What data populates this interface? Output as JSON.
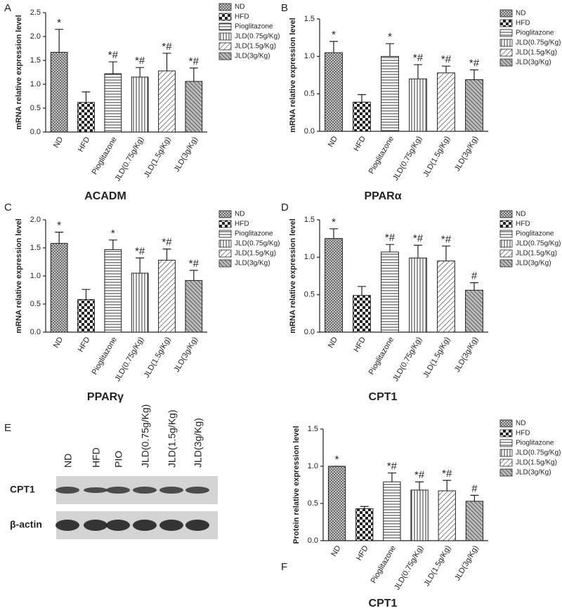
{
  "chart_data": [
    {
      "type": "bar",
      "panel_label": "A",
      "title": "ACADM",
      "ylabel": "mRNA relative expression level",
      "categories": [
        "ND",
        "HFD",
        "Pioglitazone",
        "JLD(0.75g/Kg)",
        "JLD(1.5g/Kg)",
        "JLD(3g/Kg)"
      ],
      "values": [
        1.67,
        0.62,
        1.22,
        1.15,
        1.28,
        1.06
      ],
      "errors": [
        0.48,
        0.22,
        0.25,
        0.2,
        0.37,
        0.28
      ],
      "annotations": [
        "*",
        null,
        "*#",
        "*#",
        "*#",
        "*#"
      ],
      "ylim": [
        0,
        2.5
      ],
      "yticks": [
        {
          "value": 0,
          "label": "0.0"
        },
        {
          "value": 0.5,
          "label": "0.5"
        },
        {
          "value": 1,
          "label": "1.0"
        },
        {
          "value": 1.5,
          "label": "1.5"
        },
        {
          "value": 2,
          "label": "2.0"
        },
        {
          "value": 2.5,
          "label": "2.5"
        }
      ]
    },
    {
      "type": "bar",
      "panel_label": "B",
      "title": "PPARα",
      "ylabel": "mRNA relative expression level",
      "categories": [
        "ND",
        "HFD",
        "Pioglitazone",
        "JLD(0.75g/Kg)",
        "JLD(1.5g/Kg)",
        "JLD(3g/Kg)"
      ],
      "values": [
        1.05,
        0.39,
        1.0,
        0.7,
        0.78,
        0.69
      ],
      "errors": [
        0.15,
        0.1,
        0.17,
        0.19,
        0.09,
        0.13
      ],
      "annotations": [
        "*",
        null,
        "*",
        "*#",
        "*#",
        "*#"
      ],
      "ylim": [
        0,
        1.5
      ],
      "yticks": [
        {
          "value": 0,
          "label": "0.0"
        },
        {
          "value": 0.5,
          "label": "0.5"
        },
        {
          "value": 1,
          "label": "1.0"
        },
        {
          "value": 1.5,
          "label": "1.5"
        }
      ]
    },
    {
      "type": "bar",
      "panel_label": "C",
      "title": "PPARγ",
      "ylabel": "mRNA relative expression level",
      "categories": [
        "ND",
        "HFD",
        "Pioglitazone",
        "JLD(0.75g/Kg)",
        "JLD(1.5g/Kg)",
        "JLD(3g/Kg)"
      ],
      "values": [
        1.58,
        0.58,
        1.47,
        1.05,
        1.28,
        0.92
      ],
      "errors": [
        0.2,
        0.18,
        0.17,
        0.27,
        0.2,
        0.18
      ],
      "annotations": [
        "*",
        null,
        "*",
        "*#",
        "*#",
        "*#"
      ],
      "ylim": [
        0,
        2
      ],
      "yticks": [
        {
          "value": 0,
          "label": "0.0"
        },
        {
          "value": 0.5,
          "label": "0.5"
        },
        {
          "value": 1,
          "label": "1.0"
        },
        {
          "value": 1.5,
          "label": "1.5"
        },
        {
          "value": 2,
          "label": "2.0"
        }
      ]
    },
    {
      "type": "bar",
      "panel_label": "D",
      "title": "CPT1",
      "ylabel": "mRNA relative expression level",
      "categories": [
        "ND",
        "HFD",
        "Pioglitazone",
        "JLD(0.75g/Kg)",
        "JLD(1.5g/Kg)",
        "JLD(3g/Kg)"
      ],
      "values": [
        1.25,
        0.49,
        1.07,
        0.99,
        0.95,
        0.56
      ],
      "errors": [
        0.13,
        0.12,
        0.1,
        0.17,
        0.2,
        0.1
      ],
      "annotations": [
        "*",
        null,
        "*#",
        "*#",
        "*#",
        "#"
      ],
      "ylim": [
        0,
        1.5
      ],
      "yticks": [
        {
          "value": 0,
          "label": "0.0"
        },
        {
          "value": 0.5,
          "label": "0.5"
        },
        {
          "value": 1,
          "label": "1.0"
        },
        {
          "value": 1.5,
          "label": "1.5"
        }
      ]
    },
    {
      "type": "bar",
      "panel_label": "F",
      "title": "CPT1",
      "ylabel": "Protein relative expression level",
      "categories": [
        "ND",
        "HFD",
        "Pioglitazone",
        "JLD(0.75g/Kg)",
        "JLD(1.5g/Kg)",
        "JLD(3g/Kg)"
      ],
      "values": [
        1.0,
        0.43,
        0.79,
        0.68,
        0.67,
        0.53
      ],
      "errors": [
        0,
        0.03,
        0.12,
        0.11,
        0.14,
        0.08
      ],
      "annotations": [
        "*",
        null,
        "*#",
        "*#",
        "*#",
        "#"
      ],
      "ylim": [
        0,
        1.5
      ],
      "yticks": [
        {
          "value": 0,
          "label": "0.0"
        },
        {
          "value": 0.5,
          "label": "0.5"
        },
        {
          "value": 1,
          "label": "1.0"
        },
        {
          "value": 1.5,
          "label": "1.5"
        }
      ]
    }
  ],
  "blot": {
    "panel_label": "E",
    "lanes": [
      "ND",
      "HFD",
      "PIO",
      "JLD(0.75g/Kg)",
      "JLD(1.5g/Kg)",
      "JLD(3g/Kg)"
    ],
    "rows": [
      "CPT1",
      "β-actin"
    ]
  }
}
